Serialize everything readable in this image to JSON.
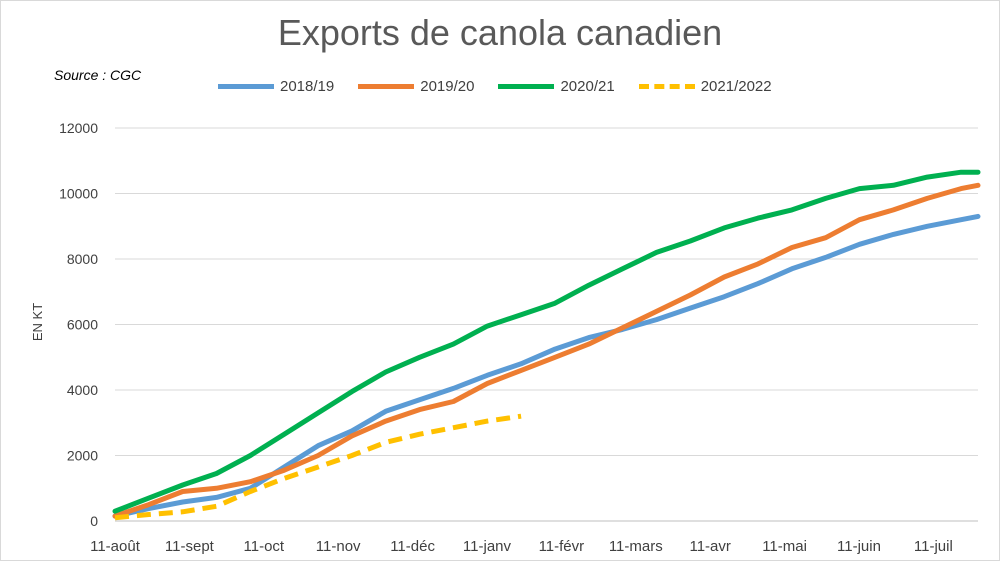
{
  "source_note": "Source : CGC",
  "chart_data": {
    "type": "line",
    "title": "Exports de canola canadien",
    "xlabel": "",
    "ylabel": "EN KT",
    "ylim": [
      0,
      12000
    ],
    "y_ticks": [
      0,
      2000,
      4000,
      6000,
      8000,
      10000,
      12000
    ],
    "x_tick_labels": [
      "11-août",
      "11-sept",
      "11-oct",
      "11-nov",
      "11-déc",
      "11-janv",
      "11-févr",
      "11-mars",
      "11-avr",
      "11-mai",
      "11-juin",
      "11-juil"
    ],
    "x_unit": "week",
    "x_range": [
      0,
      51
    ],
    "grid": "horizontal",
    "legend_position": "top",
    "series": [
      {
        "name": "2018/19",
        "color": "#5b9bd5",
        "dash": "solid",
        "x": [
          0,
          2,
          4,
          6,
          8,
          10,
          12,
          14,
          16,
          18,
          20,
          22,
          24,
          26,
          28,
          30,
          32,
          34,
          36,
          38,
          40,
          42,
          44,
          46,
          48,
          50,
          51
        ],
        "values": [
          150,
          380,
          580,
          720,
          1000,
          1650,
          2300,
          2750,
          3350,
          3700,
          4050,
          4450,
          4800,
          5250,
          5600,
          5850,
          6150,
          6500,
          6850,
          7250,
          7700,
          8050,
          8450,
          8750,
          9000,
          9200,
          9300
        ]
      },
      {
        "name": "2019/20",
        "color": "#ed7d31",
        "dash": "solid",
        "x": [
          0,
          2,
          4,
          6,
          8,
          10,
          12,
          14,
          16,
          18,
          20,
          22,
          24,
          26,
          28,
          30,
          32,
          34,
          36,
          38,
          40,
          42,
          44,
          46,
          48,
          50,
          51
        ],
        "values": [
          150,
          500,
          900,
          1000,
          1200,
          1550,
          2000,
          2600,
          3050,
          3400,
          3650,
          4200,
          4600,
          5000,
          5400,
          5900,
          6400,
          6900,
          7450,
          7850,
          8350,
          8650,
          9200,
          9500,
          9850,
          10150,
          10250
        ]
      },
      {
        "name": "2020/21",
        "color": "#00b050",
        "dash": "solid",
        "x": [
          0,
          2,
          4,
          6,
          8,
          10,
          12,
          14,
          16,
          18,
          20,
          22,
          24,
          26,
          28,
          30,
          32,
          34,
          36,
          38,
          40,
          42,
          44,
          46,
          48,
          50,
          51
        ],
        "values": [
          300,
          700,
          1100,
          1450,
          2000,
          2650,
          3300,
          3950,
          4550,
          5000,
          5400,
          5950,
          6300,
          6650,
          7200,
          7700,
          8200,
          8550,
          8950,
          9250,
          9500,
          9850,
          10150,
          10250,
          10500,
          10650,
          10650
        ]
      },
      {
        "name": "2021/2022",
        "color": "#ffc000",
        "dash": "dashed",
        "x": [
          0,
          2,
          4,
          6,
          8,
          10,
          12,
          14,
          16,
          18,
          20,
          22,
          24
        ],
        "values": [
          100,
          200,
          280,
          450,
          900,
          1300,
          1650,
          2000,
          2400,
          2650,
          2850,
          3050,
          3200
        ]
      }
    ]
  }
}
